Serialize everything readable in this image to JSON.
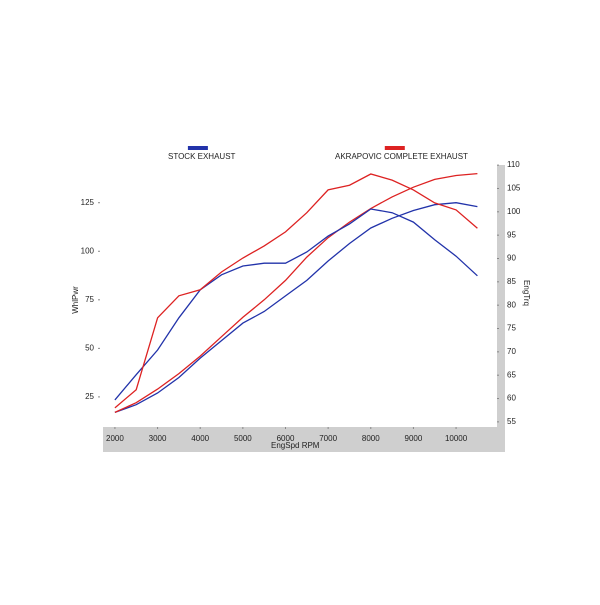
{
  "chart_data": {
    "type": "line",
    "x_label": "EngSpd  RPM",
    "y_label": "WhlPwr",
    "y2_label": "EngTrq",
    "x": [
      2000,
      2500,
      3000,
      3500,
      4000,
      4500,
      5000,
      5500,
      6000,
      6500,
      7000,
      7500,
      8000,
      8500,
      9000,
      9500,
      10000,
      10500
    ],
    "xlim": [
      1650,
      10960
    ],
    "xticks": [
      2000,
      3000,
      4000,
      5000,
      6000,
      7000,
      8000,
      9000,
      10000
    ],
    "ylim": [
      9.5,
      147
    ],
    "yticks": [
      25,
      50,
      75,
      100,
      125
    ],
    "y2lim": [
      53.9,
      111.1
    ],
    "y2ticks": [
      55,
      60,
      65,
      70,
      75,
      80,
      85,
      90,
      95,
      100,
      105,
      110
    ],
    "series": [
      {
        "name": "STOCK EXHAUST",
        "color": "#2233aa",
        "values": [
          17,
          21,
          27,
          35,
          45,
          54,
          63,
          69,
          77,
          85,
          95,
          104,
          112,
          117,
          121,
          124,
          125,
          123
        ]
      },
      {
        "name": "AKRAPOVIC COMPLETE EXHAUST",
        "color": "#dd2222",
        "values": [
          17,
          22,
          29,
          37,
          46,
          56,
          66,
          75,
          85,
          97,
          107,
          115,
          122,
          128,
          133,
          137,
          139,
          140
        ]
      },
      {
        "color": "#2233aa",
        "axis": "y2",
        "values": [
          59.7,
          65.1,
          70.4,
          77.3,
          83.3,
          86.5,
          88.4,
          89.0,
          89.0,
          91.4,
          94.8,
          97.4,
          100.6,
          99.8,
          97.8,
          94.0,
          90.5,
          86.3
        ]
      },
      {
        "color": "#dd2222",
        "axis": "y2",
        "values": [
          58.0,
          61.9,
          77.3,
          82.0,
          83.3,
          87.1,
          90.1,
          92.7,
          95.7,
          99.8,
          104.7,
          105.7,
          108.1,
          106.8,
          104.7,
          101.9,
          100.4,
          96.5
        ]
      }
    ]
  }
}
